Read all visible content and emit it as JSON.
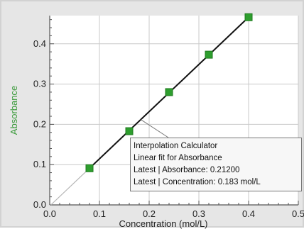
{
  "chart_data": {
    "type": "scatter",
    "title": "",
    "xlabel": "Concentration (mol/L)",
    "ylabel": "Absorbance",
    "xlim": [
      0.0,
      0.5
    ],
    "ylim": [
      0.0,
      0.47
    ],
    "grid": true,
    "x_ticks": [
      "0.0",
      "0.1",
      "0.2",
      "0.3",
      "0.4",
      "0.5"
    ],
    "y_ticks": [
      "0.0",
      "0.1",
      "0.2",
      "0.3",
      "0.4"
    ],
    "series": [
      {
        "color": "#2e9e2e",
        "x": [
          0.08,
          0.16,
          0.24,
          0.32,
          0.4
        ],
        "y": [
          0.091,
          0.183,
          0.28,
          0.373,
          0.466
        ]
      }
    ],
    "fit_line": {
      "x_start": 0.08,
      "x_end": 0.4,
      "y_start": 0.091,
      "y_end": 0.466,
      "color": "#111111"
    },
    "interpolation_point": {
      "x": 0.183,
      "y": 0.212
    },
    "annotation": {
      "title": "Interpolation Calculator",
      "subtitle": "Linear fit for Absorbance",
      "line1": "Latest | Absorbance: 0.21200",
      "line2": "Latest | Concentration: 0.183 mol/L"
    }
  },
  "colors": {
    "ylabel": "#3a9a3a",
    "xlabel": "#222222",
    "grid": "#c9c9c9",
    "plot_bg": "#ffffff"
  }
}
